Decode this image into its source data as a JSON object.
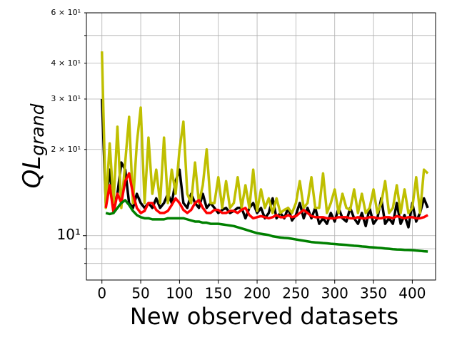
{
  "chart_data": {
    "type": "line",
    "xlabel": "New observed datasets",
    "ylabel": {
      "main": "QL",
      "sub": "grand"
    },
    "xlim": [
      -20,
      430
    ],
    "ylim": [
      7,
      60
    ],
    "log_y": true,
    "grid": true,
    "xticks": [
      0,
      50,
      100,
      150,
      200,
      250,
      300,
      350,
      400
    ],
    "yticks": [
      {
        "value": 10,
        "label": "10¹"
      },
      {
        "value": 20,
        "label": "2 × 10¹"
      },
      {
        "value": 30,
        "label": "3 × 10¹"
      },
      {
        "value": 40,
        "label": "4 × 10¹"
      },
      {
        "value": 60,
        "label": "6 × 10¹"
      }
    ],
    "yminorticks": [
      8,
      9,
      50
    ],
    "x": [
      0,
      5,
      10,
      15,
      20,
      25,
      30,
      35,
      40,
      45,
      50,
      55,
      60,
      65,
      70,
      75,
      80,
      85,
      90,
      95,
      100,
      105,
      110,
      115,
      120,
      125,
      130,
      135,
      140,
      145,
      150,
      155,
      160,
      165,
      170,
      175,
      180,
      185,
      190,
      195,
      200,
      205,
      210,
      215,
      220,
      225,
      230,
      235,
      240,
      245,
      250,
      255,
      260,
      265,
      270,
      275,
      280,
      285,
      290,
      295,
      300,
      305,
      310,
      315,
      320,
      325,
      330,
      335,
      340,
      345,
      350,
      355,
      360,
      365,
      370,
      375,
      380,
      385,
      390,
      395,
      400,
      405,
      410,
      415,
      420
    ],
    "series": [
      {
        "color": "#000000",
        "values": [
          30,
          13,
          17,
          12.5,
          14,
          18,
          17,
          13,
          12.5,
          14,
          13,
          12.5,
          13,
          12.5,
          13.5,
          12.5,
          13,
          14,
          13,
          15.5,
          17,
          13,
          12.5,
          14,
          13,
          12.5,
          14,
          12.5,
          13,
          12.5,
          12,
          12.3,
          12.5,
          12,
          12.2,
          12.5,
          12.5,
          11.5,
          12.5,
          13,
          12,
          12.5,
          11.5,
          12,
          13.5,
          11.5,
          12,
          11.5,
          12.5,
          11.3,
          11.8,
          13,
          11.5,
          12.5,
          11.5,
          12.5,
          11,
          11.5,
          11,
          12,
          11.2,
          12.5,
          11.5,
          11.2,
          12.5,
          11.5,
          11,
          12,
          10.8,
          12.5,
          11,
          11.5,
          13.5,
          11,
          11.5,
          11,
          13,
          11,
          11.8,
          10.7,
          13,
          11.2,
          12,
          13.5,
          12.5
        ]
      },
      {
        "color": "#bfbf00",
        "values": [
          44,
          12.5,
          21,
          13,
          24,
          12.5,
          18,
          26,
          13,
          21,
          28,
          13,
          22,
          14,
          17,
          13,
          22,
          13,
          17,
          14,
          20,
          25,
          14,
          13,
          18,
          13,
          15,
          20,
          13,
          13,
          16,
          12.5,
          15.5,
          12.5,
          13,
          16,
          12.5,
          15,
          12.5,
          17,
          12.2,
          14.5,
          12.5,
          13.5,
          12,
          13.5,
          12,
          12.3,
          12.5,
          12,
          13,
          15.5,
          12.5,
          13,
          16,
          12.5,
          12.5,
          16.5,
          12,
          13,
          14.5,
          12,
          14,
          12.5,
          12.3,
          14.5,
          12,
          14,
          12,
          12.5,
          14.5,
          12,
          13,
          15.5,
          12,
          12.5,
          15,
          12,
          14.5,
          12,
          12.5,
          16,
          12,
          17,
          16.5
        ]
      },
      {
        "color": "#ff0000",
        "values": [
          null,
          12.5,
          15,
          12,
          14,
          13,
          15.5,
          16.5,
          14,
          12.5,
          12,
          12.2,
          13,
          13,
          12.3,
          12,
          12,
          12.2,
          12.8,
          13.5,
          13,
          12.3,
          12,
          12.3,
          13,
          13.3,
          12.5,
          12,
          12,
          12.3,
          12.3,
          12,
          12,
          12.2,
          12.2,
          12,
          12.3,
          12.5,
          11.8,
          11.5,
          11.6,
          11.7,
          11.6,
          11.5,
          11.6,
          11.8,
          11.6,
          11.6,
          11.8,
          11.6,
          11.7,
          12,
          12.3,
          12,
          11.7,
          11.6,
          11.6,
          11.6,
          11.5,
          11.5,
          11.5,
          11.6,
          11.6,
          11.6,
          11.5,
          11.5,
          11.6,
          11.5,
          11.5,
          11.6,
          11.6,
          11.5,
          11.5,
          11.6,
          11.6,
          11.5,
          11.7,
          11.6,
          11.5,
          11.6,
          11.6,
          11.5,
          11.5,
          11.6,
          11.8
        ]
      },
      {
        "color": "#008000",
        "values": [
          null,
          12,
          11.9,
          12,
          12.5,
          13,
          13.3,
          12.8,
          12.2,
          11.8,
          11.6,
          11.5,
          11.5,
          11.4,
          11.4,
          11.4,
          11.4,
          11.5,
          11.5,
          11.5,
          11.5,
          11.5,
          11.4,
          11.3,
          11.2,
          11.2,
          11.1,
          11.1,
          11.0,
          11.0,
          11.0,
          10.95,
          10.9,
          10.85,
          10.8,
          10.7,
          10.6,
          10.5,
          10.4,
          10.3,
          10.2,
          10.15,
          10.1,
          10.05,
          9.95,
          9.9,
          9.85,
          9.82,
          9.8,
          9.75,
          9.7,
          9.65,
          9.6,
          9.55,
          9.5,
          9.47,
          9.45,
          9.42,
          9.4,
          9.37,
          9.35,
          9.32,
          9.3,
          9.28,
          9.25,
          9.22,
          9.2,
          9.17,
          9.15,
          9.12,
          9.1,
          9.07,
          9.05,
          9.02,
          9,
          8.97,
          8.95,
          8.94,
          8.92,
          8.91,
          8.9,
          8.87,
          8.85,
          8.82,
          8.8
        ]
      }
    ]
  }
}
